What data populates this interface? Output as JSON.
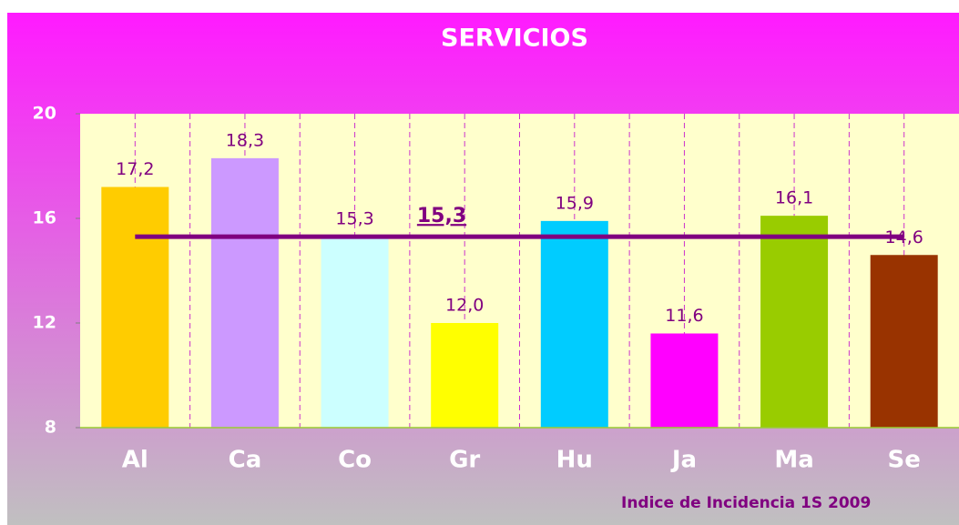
{
  "chart_data": {
    "type": "bar",
    "title": "SERVICIOS",
    "subtitle": "Indice de Incidencia 1S 2009",
    "categories": [
      "Al",
      "Ca",
      "Co",
      "Gr",
      "Hu",
      "Ja",
      "Ma",
      "Se"
    ],
    "values": [
      17.2,
      18.3,
      15.3,
      12.0,
      15.9,
      11.6,
      16.1,
      14.6
    ],
    "value_labels": [
      "17,2",
      "18,3",
      "15,3",
      "12,0",
      "15,9",
      "11,6",
      "16,1",
      "14,6"
    ],
    "colors": [
      "#ffcc00",
      "#cc99ff",
      "#ccffff",
      "#ffff00",
      "#00ccff",
      "#ff00ff",
      "#99cc00",
      "#993300"
    ],
    "average": {
      "value": 15.3,
      "label": "15,3",
      "color": "#800080"
    },
    "ylim": [
      8,
      20
    ],
    "yticks": [
      8,
      12,
      16,
      20
    ],
    "grid": true
  }
}
